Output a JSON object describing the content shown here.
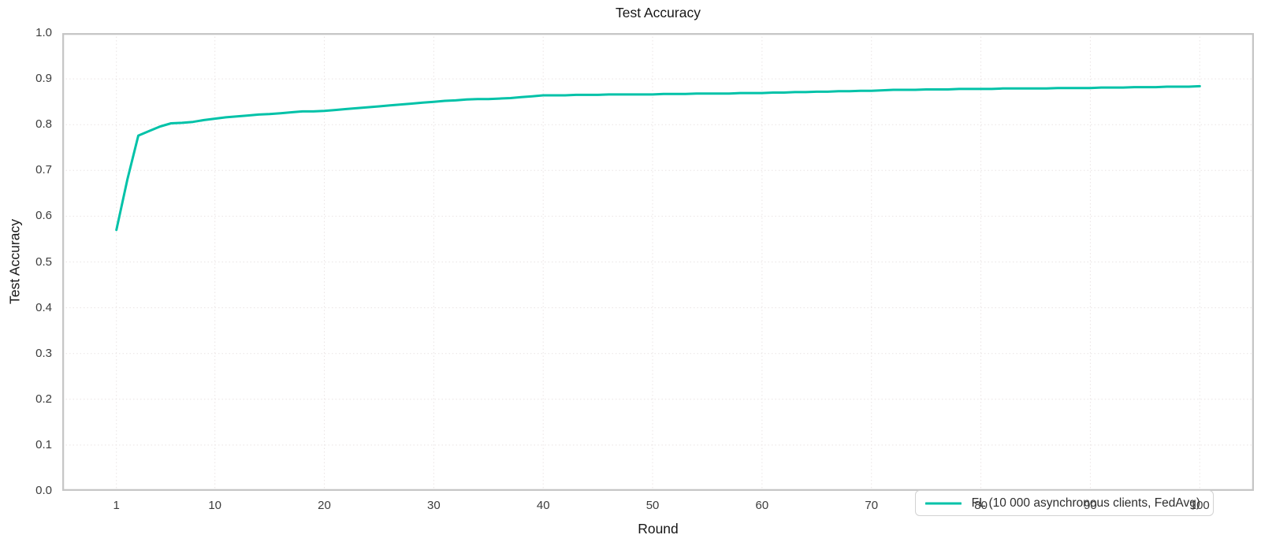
{
  "colors": {
    "line": "#00c2a8",
    "grid": "#eae4e4",
    "frame": "#c6c6c6",
    "text": "#171717",
    "tick_text": "#3c3c3c",
    "legend_border": "#d2d2d2"
  },
  "chart_data": {
    "type": "line",
    "title": "Test Accuracy",
    "xlabel": "Round",
    "ylabel": "Test Accuracy",
    "xlim": [
      -3.95,
      104.95
    ],
    "ylim": [
      0,
      1
    ],
    "grid": "dotted",
    "legend_position": "lower-right",
    "x_ticks": [
      {
        "value": 1,
        "label": "1"
      },
      {
        "value": 10,
        "label": "10"
      },
      {
        "value": 20,
        "label": "20"
      },
      {
        "value": 30,
        "label": "30"
      },
      {
        "value": 40,
        "label": "40"
      },
      {
        "value": 50,
        "label": "50"
      },
      {
        "value": 60,
        "label": "60"
      },
      {
        "value": 70,
        "label": "70"
      },
      {
        "value": 80,
        "label": "80"
      },
      {
        "value": 90,
        "label": "90"
      },
      {
        "value": 100,
        "label": "100"
      }
    ],
    "y_ticks": [
      {
        "value": 0.0,
        "label": "0.0"
      },
      {
        "value": 0.1,
        "label": "0.1"
      },
      {
        "value": 0.2,
        "label": "0.2"
      },
      {
        "value": 0.3,
        "label": "0.3"
      },
      {
        "value": 0.4,
        "label": "0.4"
      },
      {
        "value": 0.5,
        "label": "0.5"
      },
      {
        "value": 0.6,
        "label": "0.6"
      },
      {
        "value": 0.7,
        "label": "0.7"
      },
      {
        "value": 0.8,
        "label": "0.8"
      },
      {
        "value": 0.9,
        "label": "0.9"
      },
      {
        "value": 1.0,
        "label": "1.0"
      }
    ],
    "series": [
      {
        "name": "FL (10 000 asynchronous clients, FedAvg)",
        "color": "#00c2a8",
        "x": [
          1,
          2,
          3,
          4,
          5,
          6,
          7,
          8,
          9,
          10,
          11,
          12,
          13,
          14,
          15,
          16,
          17,
          18,
          19,
          20,
          21,
          22,
          23,
          24,
          25,
          26,
          27,
          28,
          29,
          30,
          31,
          32,
          33,
          34,
          35,
          36,
          37,
          38,
          39,
          40,
          41,
          42,
          43,
          44,
          45,
          46,
          47,
          48,
          49,
          50,
          51,
          52,
          53,
          54,
          55,
          56,
          57,
          58,
          59,
          60,
          61,
          62,
          63,
          64,
          65,
          66,
          67,
          68,
          69,
          70,
          71,
          72,
          73,
          74,
          75,
          76,
          77,
          78,
          79,
          80,
          81,
          82,
          83,
          84,
          85,
          86,
          87,
          88,
          89,
          90,
          91,
          92,
          93,
          94,
          95,
          96,
          97,
          98,
          99,
          100
        ],
        "y": [
          0.57,
          0.68,
          0.776,
          0.786,
          0.796,
          0.803,
          0.804,
          0.806,
          0.81,
          0.813,
          0.816,
          0.818,
          0.82,
          0.822,
          0.823,
          0.825,
          0.827,
          0.829,
          0.829,
          0.83,
          0.832,
          0.834,
          0.836,
          0.838,
          0.84,
          0.842,
          0.844,
          0.846,
          0.848,
          0.85,
          0.852,
          0.853,
          0.855,
          0.856,
          0.856,
          0.857,
          0.858,
          0.86,
          0.862,
          0.864,
          0.864,
          0.864,
          0.865,
          0.865,
          0.865,
          0.866,
          0.866,
          0.866,
          0.866,
          0.866,
          0.867,
          0.867,
          0.867,
          0.868,
          0.868,
          0.868,
          0.868,
          0.869,
          0.869,
          0.869,
          0.87,
          0.87,
          0.871,
          0.871,
          0.872,
          0.872,
          0.873,
          0.873,
          0.874,
          0.874,
          0.875,
          0.876,
          0.876,
          0.876,
          0.877,
          0.877,
          0.877,
          0.878,
          0.878,
          0.878,
          0.878,
          0.879,
          0.879,
          0.879,
          0.879,
          0.879,
          0.88,
          0.88,
          0.88,
          0.88,
          0.881,
          0.881,
          0.881,
          0.882,
          0.882,
          0.882,
          0.883,
          0.883,
          0.883,
          0.884
        ]
      }
    ]
  }
}
